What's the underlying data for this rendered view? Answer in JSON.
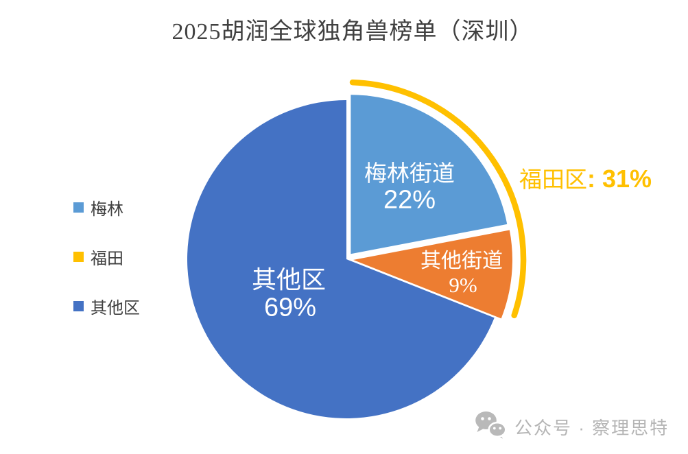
{
  "chart_data": {
    "type": "pie",
    "title": "2025胡润全球独角兽榜单（深圳）",
    "title_color": "#404040",
    "categories": [
      "梅林街道",
      "其他街道",
      "其他区"
    ],
    "values": [
      22,
      9,
      69
    ],
    "slices": [
      {
        "label": "梅林街道",
        "value": 22,
        "display": "22%",
        "color": "#5B9BD5",
        "explode": 10
      },
      {
        "label": "其他街道",
        "value": 9,
        "display": "9%",
        "color": "#ED7D31",
        "explode": 10
      },
      {
        "label": "其他区",
        "value": 69,
        "display": "69%",
        "color": "#4472C4",
        "explode": 0
      }
    ],
    "label_color": "#FFFFFF",
    "start_angle_deg": 0,
    "direction": "clockwise",
    "legend_position": "left",
    "legend": [
      {
        "label": "梅林",
        "color": "#5B9BD5"
      },
      {
        "label": "福田",
        "color": "#FFC000"
      },
      {
        "label": "其他区",
        "color": "#4472C4"
      }
    ],
    "annotation": {
      "text": "福田区: 31%",
      "serif_part": "福田区",
      "bold_part": ": 31%",
      "value": 31,
      "color": "#FFC000",
      "arc_color": "#FFC000",
      "arc_from_deg": 2,
      "arc_to_deg": 108.5
    }
  },
  "watermark": {
    "icon": "wechat-icon",
    "text": "公众号 · 察理思特",
    "color": "#b5b5b5"
  }
}
